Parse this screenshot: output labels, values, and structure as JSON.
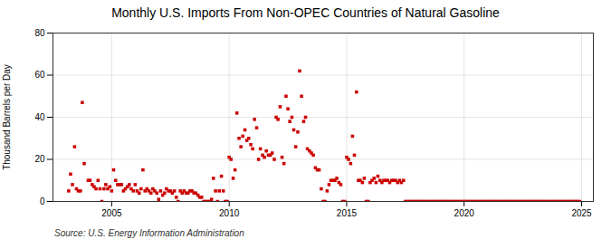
{
  "chart_data": {
    "type": "scatter",
    "title": "Monthly U.S. Imports From Non-OPEC Countries of Natural Gasoline",
    "ylabel": "Thousand Barrels per Day",
    "source": "Source: U.S. Energy Information Administration",
    "color": "#CC0000",
    "marker": "square",
    "grid": true,
    "xlim": [
      2002.5,
      2025.5
    ],
    "ylim": [
      0,
      80
    ],
    "xticks": [
      2005,
      2010,
      2015,
      2020,
      2025
    ],
    "yticks": [
      0,
      20,
      40,
      60,
      80
    ],
    "x": [
      2003.17,
      2003.25,
      2003.33,
      2003.42,
      2003.5,
      2003.58,
      2003.67,
      2003.75,
      2003.83,
      2004.0,
      2004.08,
      2004.17,
      2004.25,
      2004.33,
      2004.42,
      2004.5,
      2004.58,
      2004.67,
      2004.75,
      2004.83,
      2004.92,
      2005.0,
      2005.08,
      2005.17,
      2005.25,
      2005.33,
      2005.42,
      2005.5,
      2005.58,
      2005.67,
      2005.75,
      2005.83,
      2005.92,
      2006.0,
      2006.08,
      2006.17,
      2006.25,
      2006.33,
      2006.42,
      2006.5,
      2006.58,
      2006.67,
      2006.75,
      2006.83,
      2006.92,
      2007.0,
      2007.08,
      2007.17,
      2007.25,
      2007.33,
      2007.42,
      2007.5,
      2007.58,
      2007.67,
      2007.75,
      2007.83,
      2007.92,
      2008.0,
      2008.08,
      2008.17,
      2008.25,
      2008.33,
      2008.42,
      2008.5,
      2008.58,
      2008.67,
      2008.75,
      2008.83,
      2008.92,
      2009.0,
      2009.08,
      2009.17,
      2009.25,
      2009.33,
      2009.42,
      2009.5,
      2009.58,
      2009.67,
      2009.75,
      2009.83,
      2009.92,
      2010.0,
      2010.08,
      2010.17,
      2010.25,
      2010.33,
      2010.42,
      2010.5,
      2010.58,
      2010.67,
      2010.75,
      2010.83,
      2010.92,
      2011.0,
      2011.08,
      2011.17,
      2011.25,
      2011.33,
      2011.42,
      2011.5,
      2011.58,
      2011.67,
      2011.75,
      2011.83,
      2011.92,
      2012.0,
      2012.08,
      2012.17,
      2012.25,
      2012.33,
      2012.42,
      2012.5,
      2012.58,
      2012.67,
      2012.75,
      2012.83,
      2012.92,
      2013.0,
      2013.08,
      2013.17,
      2013.25,
      2013.33,
      2013.42,
      2013.5,
      2013.58,
      2013.67,
      2013.75,
      2013.83,
      2013.92,
      2014.0,
      2014.08,
      2014.17,
      2014.25,
      2014.33,
      2014.42,
      2014.5,
      2014.58,
      2014.67,
      2014.75,
      2014.83,
      2014.92,
      2015.0,
      2015.08,
      2015.17,
      2015.25,
      2015.33,
      2015.42,
      2015.5,
      2015.58,
      2015.67,
      2015.75,
      2015.83,
      2015.92,
      2016.0,
      2016.08,
      2016.17,
      2016.25,
      2016.33,
      2016.42,
      2016.5,
      2016.58,
      2016.67,
      2016.75,
      2016.83,
      2016.92,
      2017.0,
      2017.08,
      2017.17,
      2017.25,
      2017.33,
      2017.42,
      2017.5,
      2017.58,
      2017.67,
      2017.75,
      2017.83,
      2017.92,
      2018.0,
      2018.08,
      2018.17,
      2018.25,
      2018.33,
      2018.42,
      2018.5,
      2018.58,
      2018.67,
      2018.75,
      2018.83,
      2018.92,
      2019.0,
      2019.08,
      2019.17,
      2019.25,
      2019.33,
      2019.42,
      2019.5,
      2019.58,
      2019.67,
      2019.75,
      2019.83,
      2019.92,
      2020.0,
      2020.08,
      2020.17,
      2020.25,
      2020.33,
      2020.42,
      2020.5,
      2020.58,
      2020.67,
      2020.75,
      2020.83,
      2020.92,
      2021.0,
      2021.08,
      2021.17,
      2021.25,
      2021.33,
      2021.42,
      2021.5,
      2021.58,
      2021.67,
      2021.75,
      2021.83,
      2021.92,
      2022.0,
      2022.08,
      2022.17,
      2022.25,
      2022.33,
      2022.42,
      2022.5,
      2022.58,
      2022.67,
      2022.75,
      2022.83,
      2022.92,
      2023.0,
      2023.08,
      2023.17,
      2023.25,
      2023.33,
      2023.42,
      2023.5,
      2023.58,
      2023.67,
      2023.75,
      2023.83,
      2023.92,
      2024.0,
      2024.08,
      2024.17,
      2024.25,
      2024.33,
      2024.42,
      2024.5,
      2024.58,
      2024.67,
      2024.75,
      2024.83,
      2024.92
    ],
    "values": [
      5,
      13,
      8,
      26,
      6,
      5,
      5,
      47,
      18,
      10,
      10,
      8,
      7,
      6,
      10,
      6,
      0,
      6,
      8,
      6,
      7,
      5,
      15,
      10,
      8,
      8,
      8,
      5,
      6,
      7,
      8,
      6,
      5,
      8,
      5,
      4,
      6,
      15,
      5,
      6,
      5,
      4,
      6,
      5,
      4,
      1,
      5,
      3,
      4,
      6,
      5,
      5,
      4,
      5,
      2,
      0,
      5,
      4,
      5,
      4,
      4,
      5,
      5,
      4,
      4,
      3,
      2,
      2,
      0,
      0,
      0,
      0,
      1,
      11,
      5,
      0,
      5,
      12,
      5,
      0,
      0,
      21,
      20,
      11,
      15,
      42,
      30,
      26,
      31,
      34,
      29,
      30,
      27,
      25,
      39,
      35,
      20,
      25,
      22,
      21,
      24,
      22,
      22,
      23,
      20,
      40,
      39,
      45,
      21,
      18,
      50,
      44,
      38,
      40,
      34,
      26,
      33,
      62,
      50,
      38,
      40,
      25,
      24,
      23,
      22,
      16,
      15,
      15,
      6,
      0,
      0,
      5,
      8,
      10,
      10,
      10,
      11,
      9,
      8,
      0,
      0,
      21,
      20,
      18,
      31,
      22,
      52,
      10,
      10,
      9,
      11,
      0,
      0,
      9,
      10,
      11,
      9,
      12,
      10,
      9,
      10,
      10,
      10,
      9,
      10,
      10,
      10,
      9,
      10,
      9,
      10,
      0,
      0,
      0,
      0,
      0,
      0,
      0,
      0,
      0,
      0,
      0,
      0,
      0,
      0,
      0,
      0,
      0,
      0,
      0,
      0,
      0,
      0,
      0,
      0,
      0,
      0,
      0,
      0,
      0,
      0,
      0,
      0,
      0,
      0,
      0,
      0,
      0,
      0,
      0,
      0,
      0,
      0,
      0,
      0,
      0,
      0,
      0,
      0,
      0,
      0,
      0,
      0,
      0,
      0,
      0,
      0,
      0,
      0,
      0,
      0,
      0,
      0,
      0,
      0,
      0,
      0,
      0,
      0,
      0,
      0,
      0,
      0,
      0,
      0,
      0,
      0,
      0,
      0,
      0,
      0,
      0,
      0,
      0,
      0,
      0,
      0,
      0,
      0,
      0,
      0
    ]
  }
}
